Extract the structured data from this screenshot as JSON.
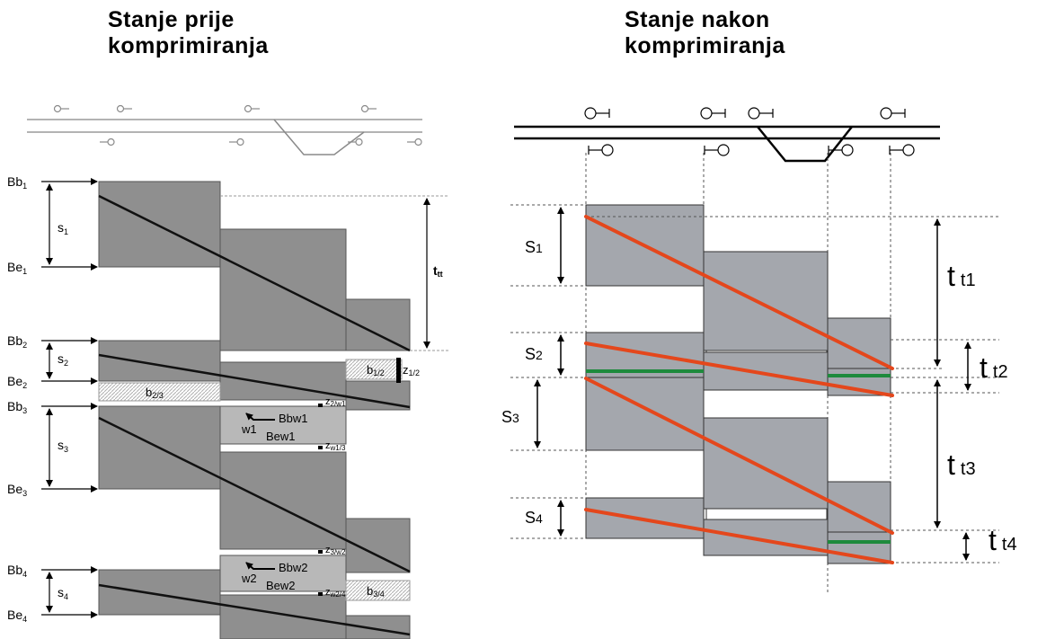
{
  "titles": {
    "before": [
      "Stanje prije",
      "komprimiranja"
    ],
    "after": [
      "Stanje nakon",
      "komprimiranja"
    ]
  },
  "left": {
    "begin_labels": [
      {
        "main": "Bb",
        "sub": "1"
      },
      {
        "main": "Bb",
        "sub": "2"
      },
      {
        "main": "Bb",
        "sub": "3"
      },
      {
        "main": "Bb",
        "sub": "4"
      }
    ],
    "end_labels": [
      {
        "main": "Be",
        "sub": "1"
      },
      {
        "main": "Be",
        "sub": "2"
      },
      {
        "main": "Be",
        "sub": "3"
      },
      {
        "main": "Be",
        "sub": "4"
      }
    ],
    "spacing_labels": [
      {
        "main": "s",
        "sub": "1"
      },
      {
        "main": "s",
        "sub": "2"
      },
      {
        "main": "s",
        "sub": "3"
      },
      {
        "main": "s",
        "sub": "4"
      }
    ],
    "travel_time": {
      "main": "t",
      "sub": "tt"
    },
    "buffers": [
      {
        "main": "b",
        "sub": "1/2"
      },
      {
        "main": "b",
        "sub": "2/3"
      },
      {
        "main": "b",
        "sub": "3/4"
      }
    ],
    "z_labels": [
      {
        "main": "z",
        "sub": "1/2"
      },
      {
        "main": "z",
        "sub": "2/w1"
      },
      {
        "main": "z",
        "sub": "w1/3"
      },
      {
        "main": "z",
        "sub": "3/w2"
      },
      {
        "main": "z",
        "sub": "w2/4"
      }
    ],
    "wait_blocks": [
      {
        "id": "w1",
        "begin": "Bbw1",
        "end": "Bew1"
      },
      {
        "id": "w2",
        "begin": "Bbw2",
        "end": "Bew2"
      }
    ]
  },
  "right": {
    "spacing_labels": [
      {
        "main": "S",
        "sub": "1"
      },
      {
        "main": "S",
        "sub": "2"
      },
      {
        "main": "S",
        "sub": "3"
      },
      {
        "main": "S",
        "sub": "4"
      }
    ],
    "travel_labels": [
      {
        "main": "t",
        "sub": "t1"
      },
      {
        "main": "t",
        "sub": "t2"
      },
      {
        "main": "t",
        "sub": "t3"
      },
      {
        "main": "t",
        "sub": "t4"
      }
    ]
  },
  "colors": {
    "block_fill": "#a4a7ad",
    "left_block_fill": "#8f8f8f",
    "wait_block_fill": "#b8b8b8",
    "buffer_fill": "#e8e8e8",
    "train_path_left": "#111111",
    "train_path_right": "#e4471c",
    "wait_marker": "#1e8a3c",
    "track": "#000000",
    "track_light": "#9a9a9a"
  }
}
